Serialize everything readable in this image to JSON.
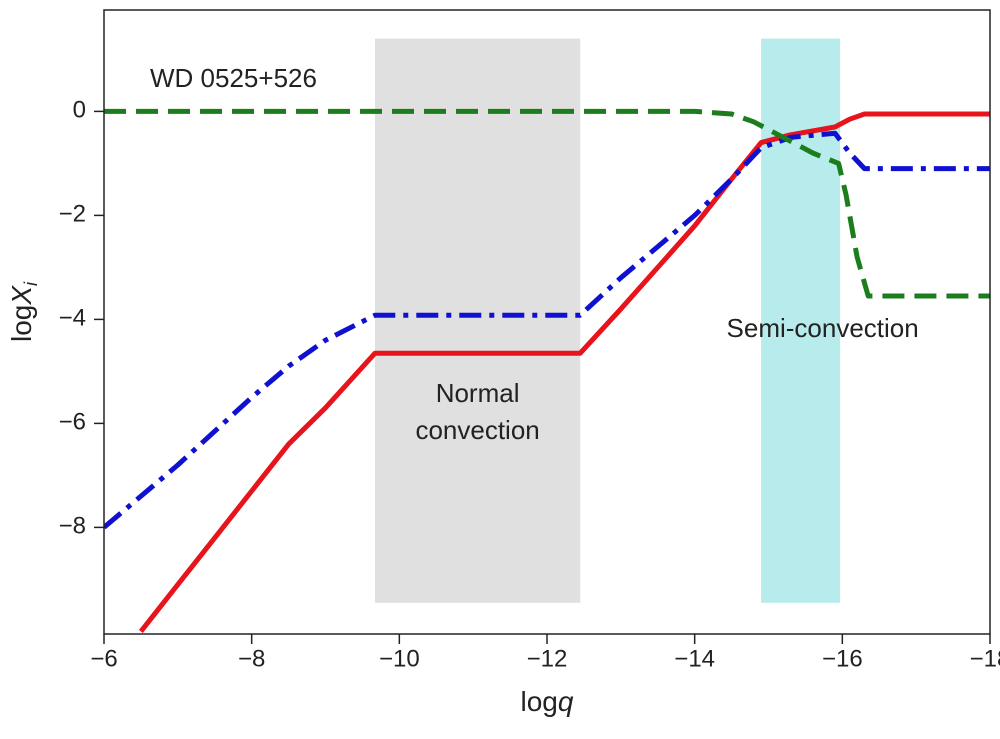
{
  "chart_data": {
    "type": "line",
    "xlabel": [
      "log",
      "q"
    ],
    "ylabel": [
      "log",
      "X",
      "i"
    ],
    "xlim": [
      -6,
      -18
    ],
    "ylim": [
      -10.05,
      1.95
    ],
    "xticks": [
      {
        "value": -6,
        "label": "−6"
      },
      {
        "value": -8,
        "label": "−8"
      },
      {
        "value": -10,
        "label": "−10"
      },
      {
        "value": -12,
        "label": "−12"
      },
      {
        "value": -14,
        "label": "−14"
      },
      {
        "value": -16,
        "label": "−16"
      },
      {
        "value": -18,
        "label": "−18"
      }
    ],
    "yticks": [
      0,
      {
        "value": -2,
        "label": "−2"
      },
      {
        "value": -4,
        "label": "−4"
      },
      {
        "value": -6,
        "label": "−6"
      },
      {
        "value": -8,
        "label": "−8"
      }
    ],
    "annotation": "WD 0525+526",
    "regions": [
      {
        "xlim": [
          -9.67,
          -12.45
        ],
        "ylim": [
          1.4,
          -9.45
        ],
        "color": "#e0e0e0",
        "label": [
          "Normal",
          "convection"
        ]
      },
      {
        "xlim": [
          -14.9,
          -15.97
        ],
        "ylim": [
          1.4,
          -9.45
        ],
        "color": "#b8ecec",
        "label": [
          "Semi-convection"
        ]
      }
    ],
    "series": [
      {
        "color": "#e8141b",
        "style": "solid",
        "x": [
          -6.5,
          -7,
          -7.5,
          -8,
          -8.5,
          -9,
          -9.67,
          -12.45,
          -13,
          -13.5,
          -14,
          -14.5,
          -14.9,
          -15.3,
          -15.9,
          -16.1,
          -16.3,
          -18
        ],
        "values": [
          -10.0,
          -9.1,
          -8.2,
          -7.3,
          -6.4,
          -5.7,
          -4.65,
          -4.65,
          -3.8,
          -3.0,
          -2.2,
          -1.3,
          -0.6,
          -0.45,
          -0.3,
          -0.15,
          -0.05,
          -0.05
        ]
      },
      {
        "color": "#1010d0",
        "style": "dashdot",
        "x": [
          -6,
          -7,
          -8,
          -8.5,
          -9,
          -9.67,
          -12.45,
          -13,
          -13.5,
          -14,
          -14.5,
          -14.9,
          -15.3,
          -15.9,
          -16.1,
          -16.3,
          -18
        ],
        "values": [
          -8.0,
          -6.8,
          -5.5,
          -4.9,
          -4.4,
          -3.92,
          -3.92,
          -3.2,
          -2.6,
          -2.0,
          -1.3,
          -0.7,
          -0.5,
          -0.42,
          -0.8,
          -1.1,
          -1.1
        ]
      },
      {
        "color": "#1b7d1b",
        "style": "dashed",
        "x": [
          -6,
          -14,
          -14.5,
          -14.8,
          -15.2,
          -15.6,
          -15.95,
          -16.05,
          -16.2,
          -16.35,
          -18
        ],
        "values": [
          0,
          0,
          -0.05,
          -0.2,
          -0.5,
          -0.8,
          -1.0,
          -1.6,
          -2.8,
          -3.55,
          -3.55
        ]
      }
    ]
  }
}
